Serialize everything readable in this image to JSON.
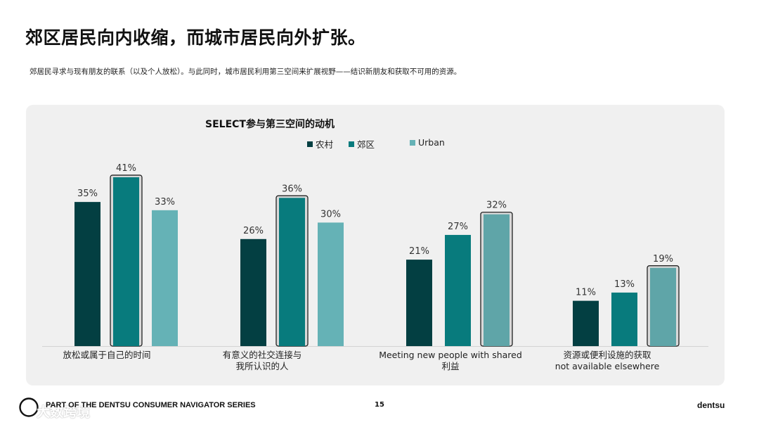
{
  "slide": {
    "title": "郊区居民向内收缩，而城市居民向外扩张。",
    "subtitle": "郊居民寻求与现有朋友的联系（以及个人放松）。与此同时，城市居民利用第三空间来扩展视野——结识新朋友和获取不可用的资源。"
  },
  "footer": {
    "series_label": "PART OF THE DENTSU CONSUMER NAVIGATOR SERIES",
    "page_number": "15",
    "brand": "dentsu",
    "watermark": "大数跨境"
  },
  "colors": {
    "rural": "#033f42",
    "suburban": "#087b7d",
    "urban": "#65b2b6",
    "panel": "#f0f0f0"
  },
  "chart_data": {
    "type": "bar",
    "title": "SELECT参与第三空间的动机",
    "categories": [
      [
        "放松或属于自己的时间"
      ],
      [
        "有意义的社交连接与",
        "我所认识的人"
      ],
      [
        "Meeting new people with shared",
        "利益"
      ],
      [
        "资源或便利设施的获取",
        "not available elsewhere"
      ]
    ],
    "series": [
      {
        "name": "农村",
        "values": [
          35,
          26,
          21,
          11
        ]
      },
      {
        "name": "郊区",
        "values": [
          41,
          36,
          27,
          13
        ]
      },
      {
        "name": "Urban",
        "values": [
          33,
          30,
          32,
          19
        ]
      }
    ],
    "highlighted": [
      [
        0,
        1
      ],
      [
        1,
        1
      ],
      [
        2,
        2
      ],
      [
        3,
        2
      ]
    ],
    "value_suffix": "%",
    "ylim": [
      0,
      45
    ],
    "legend_position": "top",
    "grid": false
  }
}
